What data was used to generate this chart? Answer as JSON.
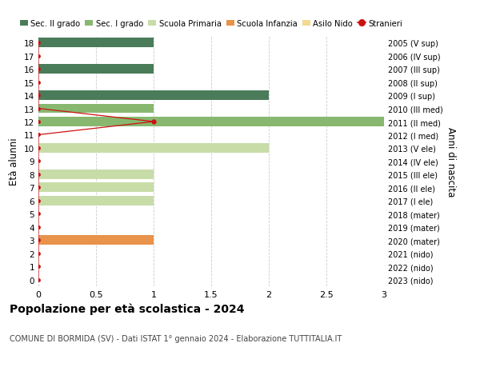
{
  "ages": [
    0,
    1,
    2,
    3,
    4,
    5,
    6,
    7,
    8,
    9,
    10,
    11,
    12,
    13,
    14,
    15,
    16,
    17,
    18
  ],
  "right_labels": [
    "2023 (nido)",
    "2022 (nido)",
    "2021 (nido)",
    "2020 (mater)",
    "2019 (mater)",
    "2018 (mater)",
    "2017 (I ele)",
    "2016 (II ele)",
    "2015 (III ele)",
    "2014 (IV ele)",
    "2013 (V ele)",
    "2012 (I med)",
    "2011 (II med)",
    "2010 (III med)",
    "2009 (I sup)",
    "2008 (II sup)",
    "2007 (III sup)",
    "2006 (IV sup)",
    "2005 (V sup)"
  ],
  "bar_values": [
    0,
    0,
    0,
    1,
    0,
    0,
    1,
    1,
    1,
    0,
    2,
    0,
    3,
    1,
    2,
    0,
    1,
    0,
    1
  ],
  "bar_colors": [
    "#e8e8e8",
    "#e8e8e8",
    "#e8e8e8",
    "#e8924a",
    "#f5d98c",
    "#f5d98c",
    "#c8dca8",
    "#c8dca8",
    "#c8dca8",
    "#c8dca8",
    "#c8dca8",
    "#88b870",
    "#88b870",
    "#88b870",
    "#4a7c59",
    "#4a7c59",
    "#4a7c59",
    "#4a7c59",
    "#4a7c59"
  ],
  "title": "Popolazione per età scolastica - 2024",
  "subtitle": "COMUNE DI BORMIDA (SV) - Dati ISTAT 1° gennaio 2024 - Elaborazione TUTTITALIA.IT",
  "ylabel": "Età alunni",
  "ylabel_right": "Anni di nascita",
  "xlim": [
    0,
    3.0
  ],
  "xticks": [
    0,
    0.5,
    1.0,
    1.5,
    2.0,
    2.5,
    3.0
  ],
  "legend_labels": [
    "Sec. II grado",
    "Sec. I grado",
    "Scuola Primaria",
    "Scuola Infanzia",
    "Asilo Nido",
    "Stranieri"
  ],
  "legend_colors": [
    "#4a7c59",
    "#88b870",
    "#c8dca8",
    "#e8924a",
    "#f5d98c",
    "#cc1111"
  ],
  "color_stranieri": "#cc1111",
  "bg_color": "#ffffff",
  "stranieri_line_ages": [
    18,
    17,
    16,
    15,
    14,
    13,
    12,
    11,
    10,
    9,
    8,
    7,
    6,
    5,
    4,
    3,
    2,
    1,
    0
  ],
  "stranieri_line_x": [
    0,
    0,
    0,
    0,
    0,
    0,
    1,
    0,
    0,
    0,
    0,
    0,
    0,
    0,
    0,
    0,
    0,
    0,
    0
  ]
}
